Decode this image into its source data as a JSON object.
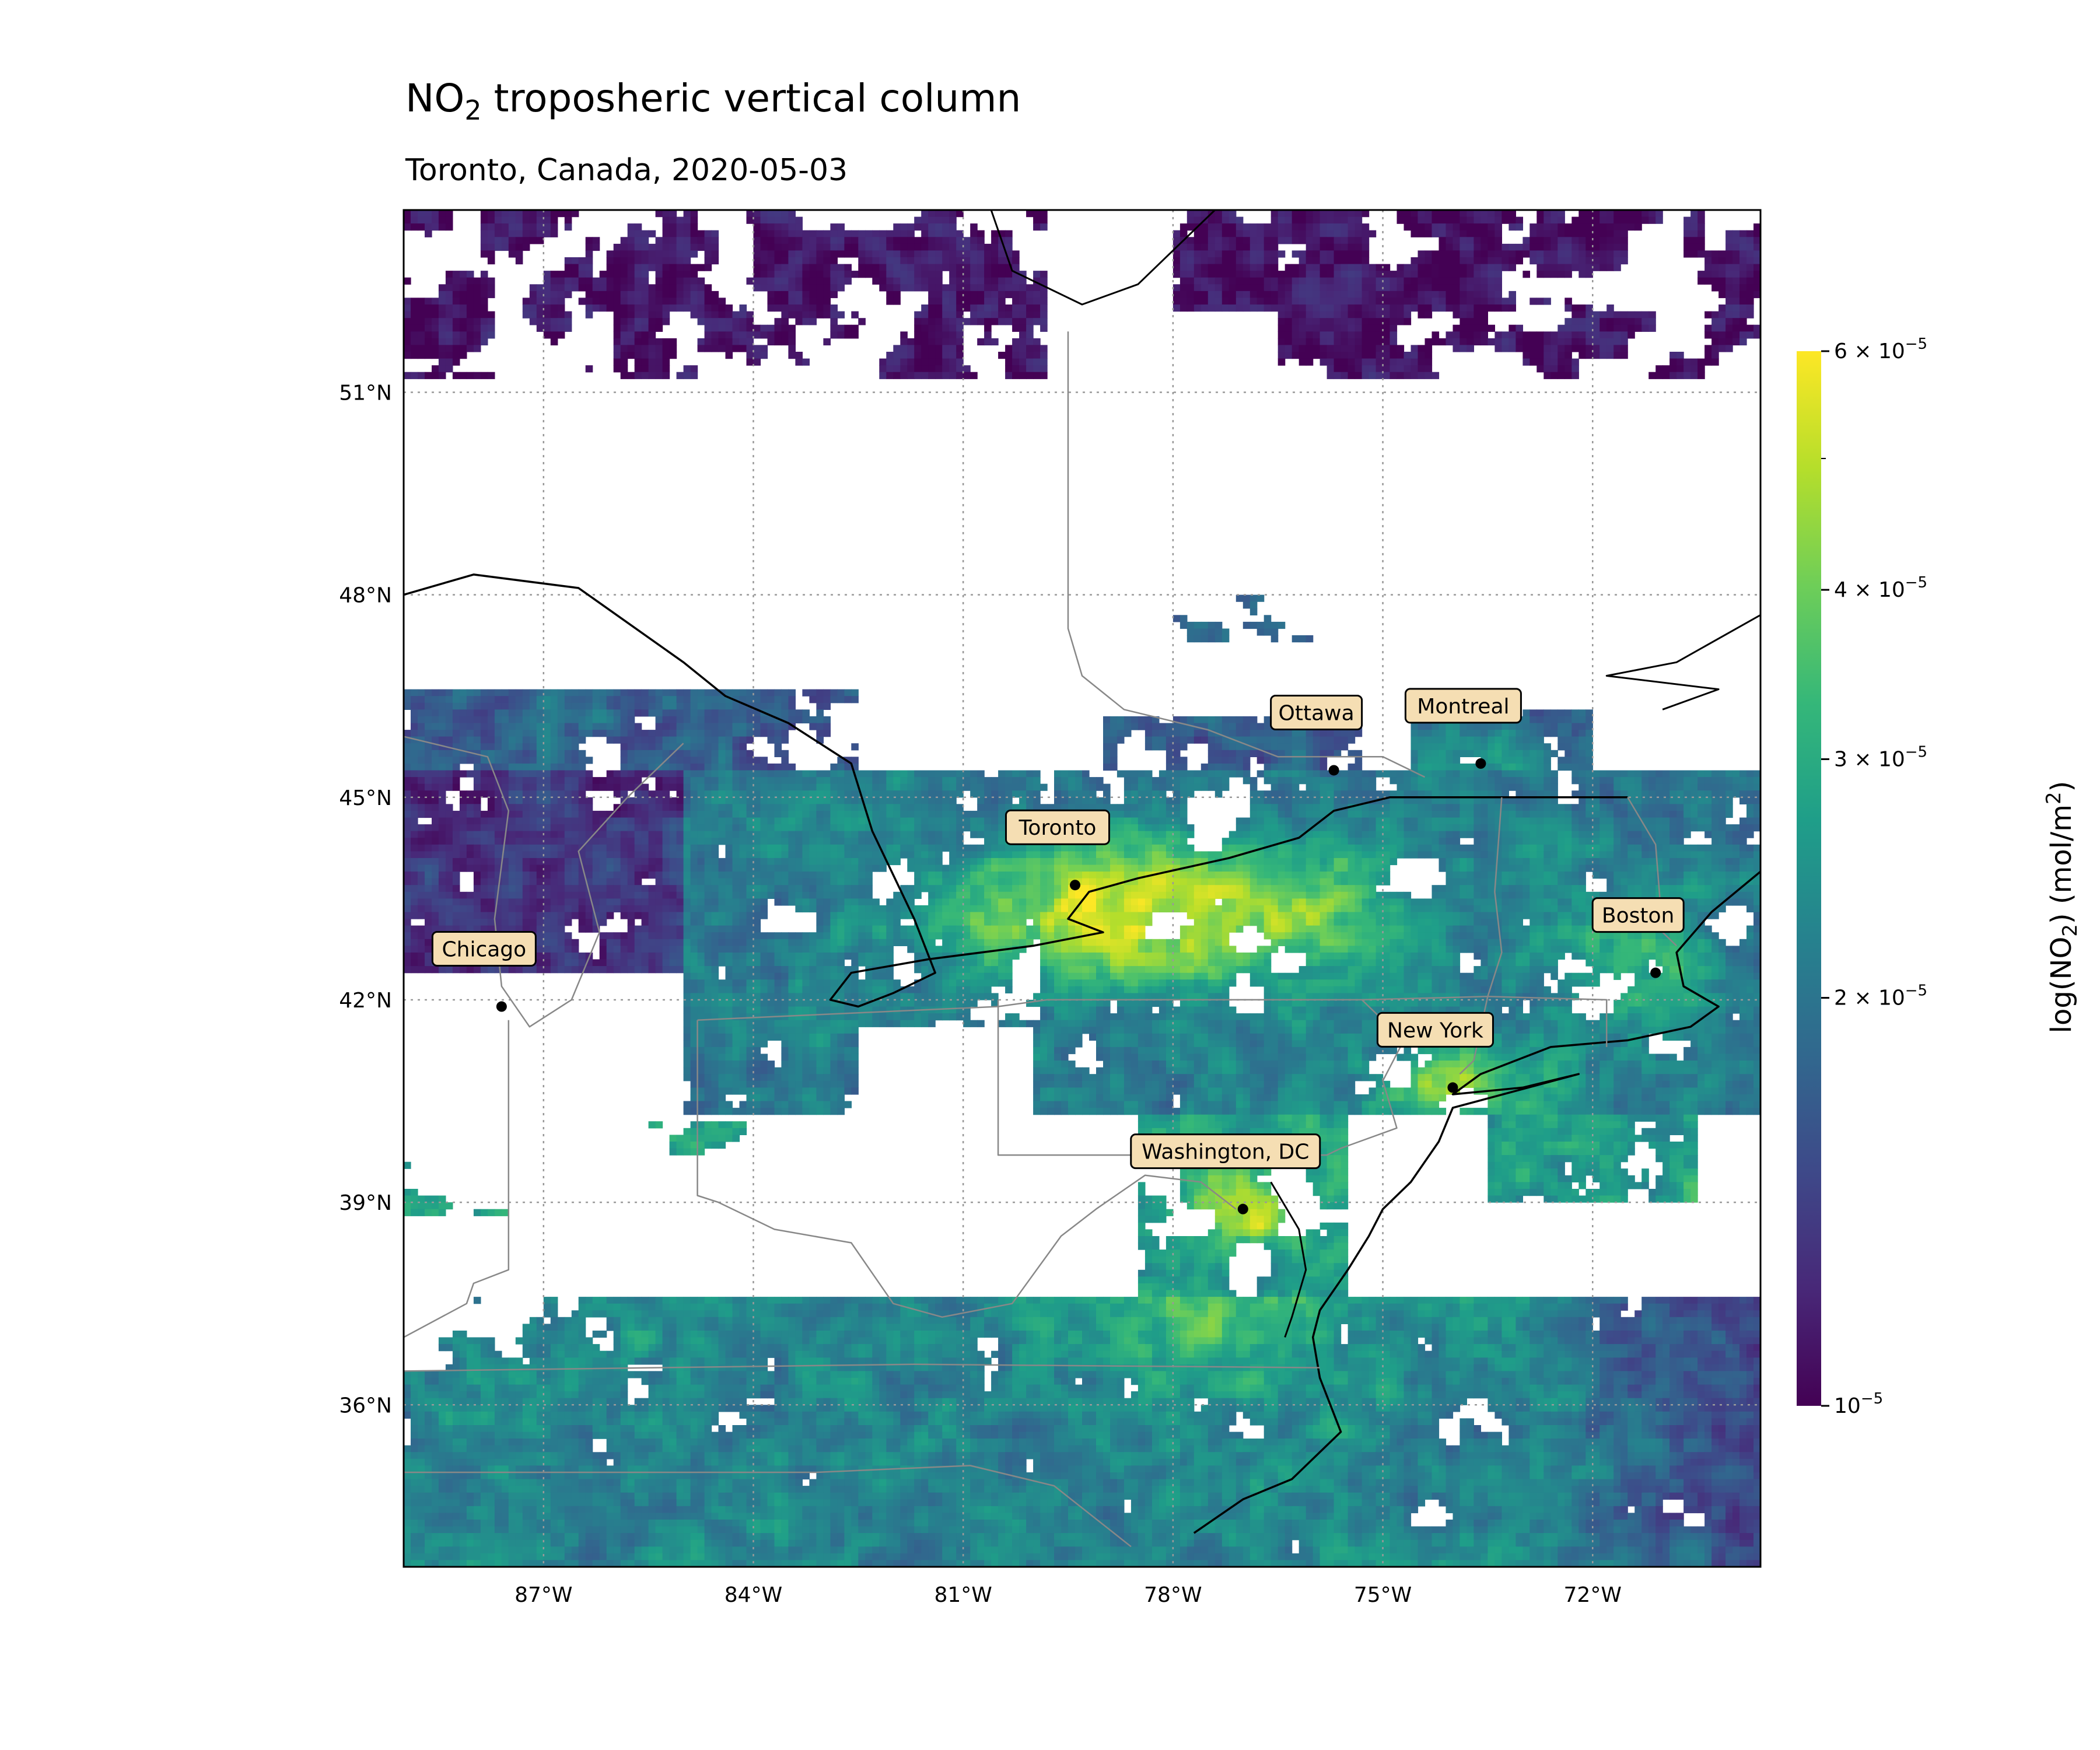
{
  "figure": {
    "title_main": "NO",
    "title_sub": "2",
    "title_rest": " troposheric vertical column",
    "subtitle": "Toronto, Canada, 2020-05-03"
  },
  "map": {
    "lon_range": [
      -89,
      -69.6
    ],
    "lat_range": [
      33.6,
      53.7
    ],
    "lon_ticks": [
      {
        "value": -87,
        "label": "87°W"
      },
      {
        "value": -84,
        "label": "84°W"
      },
      {
        "value": -81,
        "label": "81°W"
      },
      {
        "value": -78,
        "label": "78°W"
      },
      {
        "value": -75,
        "label": "75°W"
      },
      {
        "value": -72,
        "label": "72°W"
      }
    ],
    "lat_ticks": [
      {
        "value": 51,
        "label": "51°N"
      },
      {
        "value": 48,
        "label": "48°N"
      },
      {
        "value": 45,
        "label": "45°N"
      },
      {
        "value": 42,
        "label": "42°N"
      },
      {
        "value": 39,
        "label": "39°N"
      },
      {
        "value": 36,
        "label": "36°N"
      }
    ],
    "gridlines": true,
    "cities": [
      {
        "name": "Ottawa",
        "lon": -75.7,
        "lat": 45.4
      },
      {
        "name": "Montreal",
        "lon": -73.6,
        "lat": 45.5
      },
      {
        "name": "Toronto",
        "lon": -79.4,
        "lat": 43.7
      },
      {
        "name": "Boston",
        "lon": -71.1,
        "lat": 42.4
      },
      {
        "name": "Chicago",
        "lon": -87.6,
        "lat": 41.9
      },
      {
        "name": "New York",
        "lon": -74.0,
        "lat": 40.7
      },
      {
        "name": "Washington, DC",
        "lon": -77.0,
        "lat": 38.9
      }
    ]
  },
  "colorbar": {
    "scale": "log",
    "range": [
      1e-05,
      6e-05
    ],
    "colors": [
      "#440154",
      "#482878",
      "#3e4989",
      "#31688e",
      "#26828e",
      "#1f9e89",
      "#35b779",
      "#6ece58",
      "#b5de2b",
      "#fde725"
    ],
    "ticks": [
      {
        "value": 1e-05,
        "base": "10",
        "exp": "−5"
      },
      {
        "value": 2e-05,
        "base": "2 × 10",
        "exp": "−5"
      },
      {
        "value": 3e-05,
        "base": "3 × 10",
        "exp": "−5"
      },
      {
        "value": 4e-05,
        "base": "4 × 10",
        "exp": "−5"
      },
      {
        "value": 6e-05,
        "base": "6 × 10",
        "exp": "−5"
      }
    ],
    "minor_ticks": [
      5e-05
    ],
    "label_prefix": "log(NO",
    "label_sub": "2",
    "label_mid": ") (mol/m",
    "label_sup": "2",
    "label_suffix": ")"
  }
}
